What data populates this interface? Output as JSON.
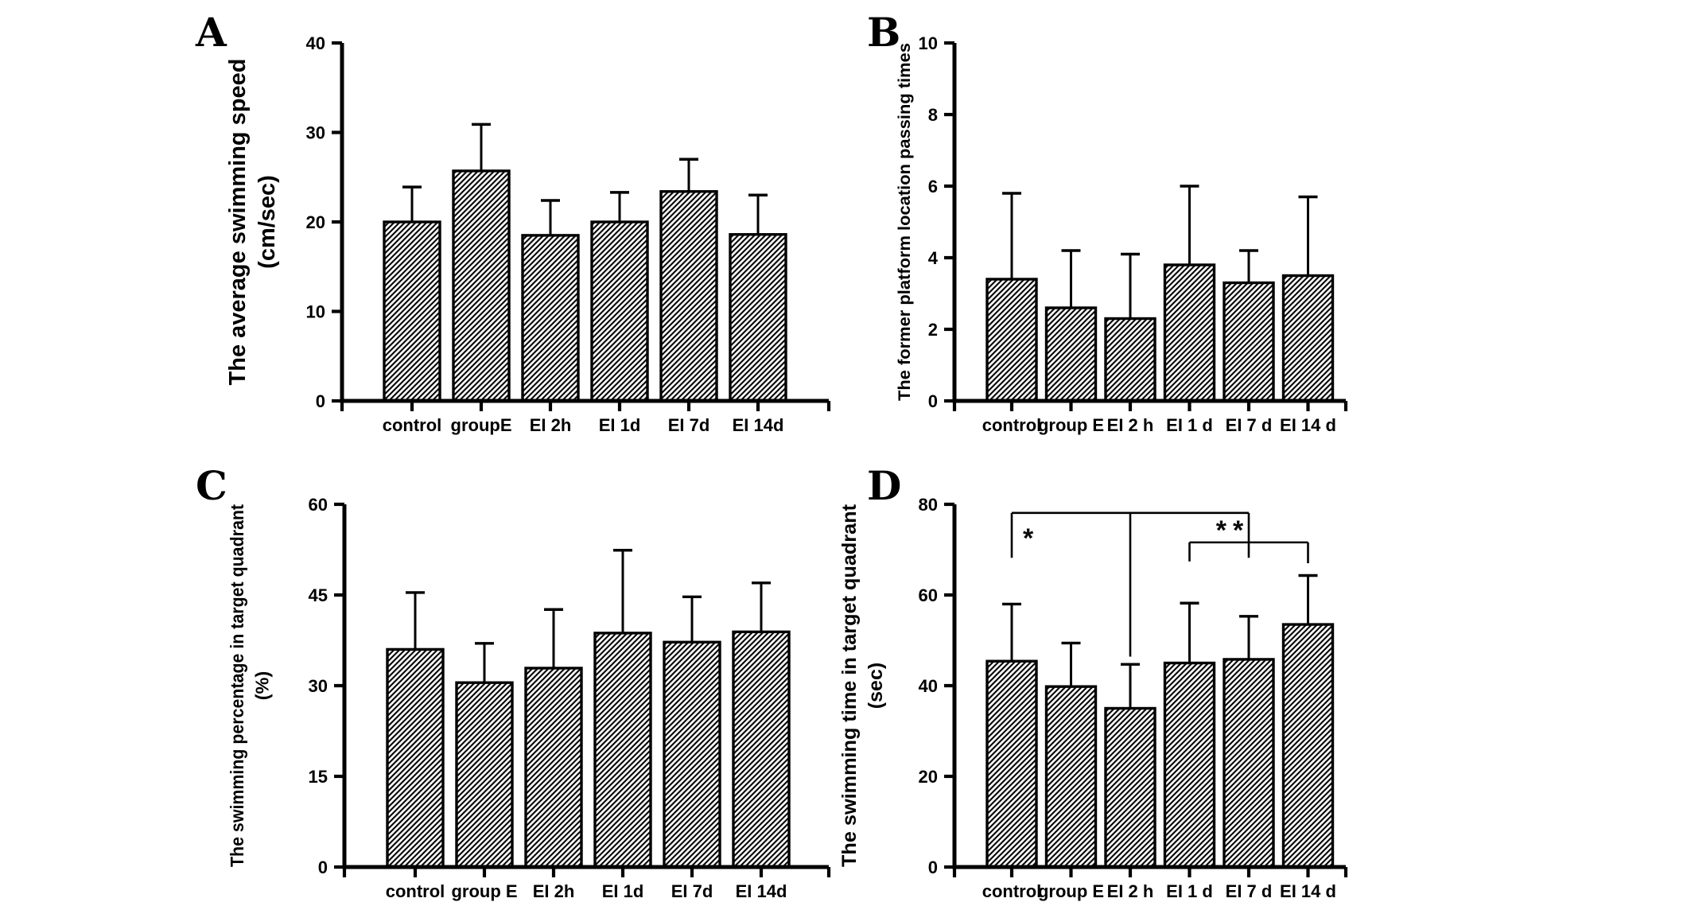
{
  "figure": {
    "background": "#ffffff",
    "ink_color": "#000000",
    "panel_letters": [
      "A",
      "B",
      "C",
      "D"
    ],
    "bar_style": "white bars with black diagonal hatch, upper error bars only"
  },
  "chart_data": [
    {
      "type": "bar",
      "panel": "A",
      "ylabel": "The average swimming speed",
      "ylabel_unit": "(cm/sec)",
      "categories": [
        "control",
        "groupE",
        "EI 2h",
        "EI 1d",
        "EI 7d",
        "EI 14d"
      ],
      "values": [
        20.0,
        25.7,
        18.5,
        20.0,
        23.4,
        18.6
      ],
      "errors_up": [
        3.9,
        5.2,
        3.9,
        3.3,
        3.6,
        4.4
      ],
      "ylim": [
        0,
        40
      ],
      "yticks": [
        0,
        10,
        20,
        30,
        40
      ],
      "grid": false,
      "legend": "none",
      "bar_fill": "black-diagonal-hatch"
    },
    {
      "type": "bar",
      "panel": "B",
      "ylabel": "The former platform location passing times",
      "ylabel_unit": "",
      "categories": [
        "control",
        "group E",
        "EI 2 h",
        "EI 1 d",
        "EI 7 d",
        "EI 14 d"
      ],
      "values": [
        3.4,
        2.6,
        2.3,
        3.8,
        3.3,
        3.5
      ],
      "errors_up": [
        2.4,
        1.6,
        1.8,
        2.2,
        0.9,
        2.2
      ],
      "ylim": [
        0,
        10
      ],
      "yticks": [
        0,
        2,
        4,
        6,
        8,
        10
      ],
      "grid": false,
      "legend": "none",
      "bar_fill": "black-diagonal-hatch"
    },
    {
      "type": "bar",
      "panel": "C",
      "ylabel": "The swimming percentage in target quadrant",
      "ylabel_unit": "(%)",
      "categories": [
        "control",
        "group E",
        "EI 2h",
        "EI 1d",
        "EI 7d",
        "EI 14d"
      ],
      "values": [
        36.0,
        30.5,
        32.9,
        38.7,
        37.2,
        38.9
      ],
      "errors_up": [
        9.4,
        6.5,
        9.7,
        13.7,
        7.5,
        8.1
      ],
      "ylim": [
        0,
        60
      ],
      "yticks": [
        0,
        15,
        30,
        45,
        60
      ],
      "grid": false,
      "legend": "none",
      "bar_fill": "black-diagonal-hatch"
    },
    {
      "type": "bar",
      "panel": "D",
      "ylabel": "The swimming time in target quadrant",
      "ylabel_unit": "(sec)",
      "categories": [
        "control",
        "group E",
        "EI 2 h",
        "EI 1 d",
        "EI 7 d",
        "EI 14 d"
      ],
      "values": [
        45.4,
        39.8,
        35.0,
        45.0,
        45.8,
        53.5
      ],
      "errors_up": [
        12.6,
        9.6,
        9.7,
        13.2,
        9.5,
        10.8
      ],
      "ylim": [
        0,
        80
      ],
      "yticks": [
        0,
        20,
        40,
        60,
        80
      ],
      "grid": false,
      "legend": "none",
      "bar_fill": "black-diagonal-hatch",
      "significance": [
        {
          "label": "*",
          "compare": [
            "control",
            "EI 2 h"
          ]
        },
        {
          "label": "**",
          "compare": [
            "EI 2 h",
            "EI 1 d",
            "EI 7 d",
            "EI 14 d"
          ]
        }
      ]
    }
  ]
}
